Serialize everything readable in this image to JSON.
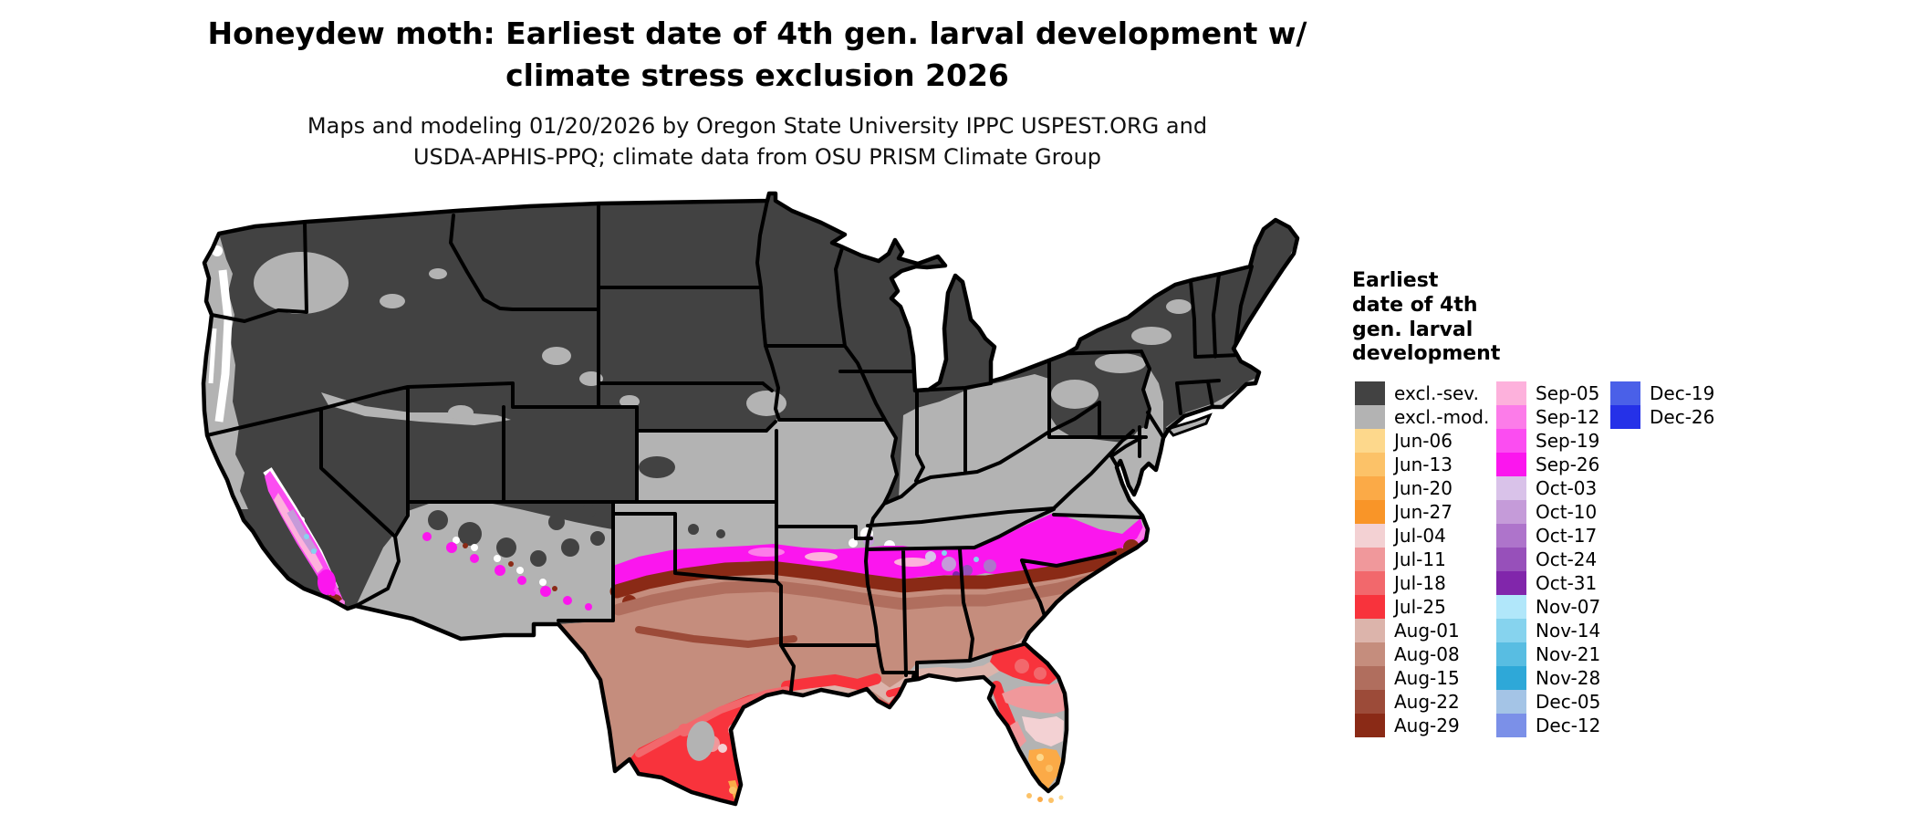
{
  "title": {
    "line1": "Honeydew moth: Earliest date of 4th gen. larval development w/",
    "line2": "climate stress exclusion 2026"
  },
  "subtitle": {
    "line1": "Maps and modeling 01/20/2026 by Oregon State University IPPC USPEST.ORG and",
    "line2": "USDA-APHIS-PPQ; climate data from OSU PRISM Climate Group"
  },
  "legend": {
    "title_lines": [
      "Earliest",
      "date of 4th",
      "gen. larval",
      "development"
    ],
    "columns": [
      [
        {
          "label": "excl.-sev.",
          "color": "#424242"
        },
        {
          "label": "excl.-mod.",
          "color": "#b3b3b3"
        },
        {
          "label": "Jun-06",
          "color": "#fdd88c"
        },
        {
          "label": "Jun-13",
          "color": "#fcc268"
        },
        {
          "label": "Jun-20",
          "color": "#fbaa47"
        },
        {
          "label": "Jun-27",
          "color": "#f99528"
        },
        {
          "label": "Jul-04",
          "color": "#f3d1d3"
        },
        {
          "label": "Jul-11",
          "color": "#f0989b"
        },
        {
          "label": "Jul-18",
          "color": "#f2686c"
        },
        {
          "label": "Jul-25",
          "color": "#f8333c"
        },
        {
          "label": "Aug-01",
          "color": "#dcb4ab"
        },
        {
          "label": "Aug-08",
          "color": "#c58d7d"
        },
        {
          "label": "Aug-15",
          "color": "#b06e5e"
        },
        {
          "label": "Aug-22",
          "color": "#9c4b39"
        },
        {
          "label": "Aug-29",
          "color": "#8a2a16"
        }
      ],
      [
        {
          "label": "Sep-05",
          "color": "#fdb1dc"
        },
        {
          "label": "Sep-12",
          "color": "#fc7ce9"
        },
        {
          "label": "Sep-19",
          "color": "#fb4df1"
        },
        {
          "label": "Sep-26",
          "color": "#fb16ee"
        },
        {
          "label": "Oct-03",
          "color": "#d9c2e9"
        },
        {
          "label": "Oct-10",
          "color": "#c59bd9"
        },
        {
          "label": "Oct-17",
          "color": "#ae74cb"
        },
        {
          "label": "Oct-24",
          "color": "#9750ba"
        },
        {
          "label": "Oct-31",
          "color": "#8126ab"
        },
        {
          "label": "Nov-07",
          "color": "#b1e7fa"
        },
        {
          "label": "Nov-14",
          "color": "#86d3ee"
        },
        {
          "label": "Nov-21",
          "color": "#58bde2"
        },
        {
          "label": "Nov-28",
          "color": "#2ea8d8"
        },
        {
          "label": "Dec-05",
          "color": "#a4c4e6"
        },
        {
          "label": "Dec-12",
          "color": "#7b90e8"
        }
      ],
      [
        {
          "label": "Dec-19",
          "color": "#4a60e8"
        },
        {
          "label": "Dec-26",
          "color": "#2531e8"
        }
      ]
    ]
  },
  "map": {
    "description": "CONUS map of earliest date of 4th generation larval development with climate stress exclusion",
    "palette": {
      "excl_sev": "#424242",
      "excl_mod": "#b3b3b3",
      "jun06": "#fdd88c",
      "jun13": "#fcc268",
      "jun20": "#fbaa47",
      "jun27": "#f99528",
      "jul04": "#f3d1d3",
      "jul11": "#f0989b",
      "jul18": "#f2686c",
      "jul25": "#f8333c",
      "aug01": "#dcb4ab",
      "aug08": "#c58d7d",
      "aug15": "#b06e5e",
      "aug22": "#9c4b39",
      "aug29": "#8a2a16",
      "sep05": "#fdb1dc",
      "sep12": "#fc7ce9",
      "sep19": "#fb4df1",
      "sep26": "#fb16ee",
      "oct03": "#d9c2e9",
      "oct10": "#c59bd9",
      "oct17": "#ae74cb",
      "oct24": "#9750ba",
      "oct31": "#8126ab",
      "nov14": "#86d3ee",
      "white": "#ffffff",
      "state_border": "#000000"
    }
  }
}
